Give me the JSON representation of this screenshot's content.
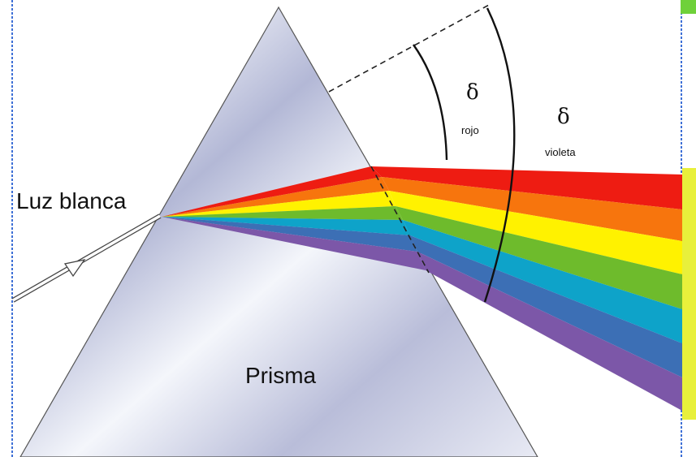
{
  "labels": {
    "white_light": "Luz blanca",
    "prism": "Prisma",
    "delta_red_symbol": "δ",
    "delta_red_sub": "rojo",
    "delta_violet_symbol": "δ",
    "delta_violet_sub": "violeta"
  },
  "spectrum": {
    "colors": [
      "#ee1c12",
      "#f7750d",
      "#fff200",
      "#6ebb2c",
      "#0ea3c9",
      "#3c6fb5",
      "#7c57a8"
    ]
  },
  "colors": {
    "border_blue": "#3d6fd6",
    "screen_yellow": "#e8f03b",
    "corner_green": "#6fd13a",
    "prism_light": "#f4f6fb",
    "prism_dark": "#a9afd0"
  }
}
